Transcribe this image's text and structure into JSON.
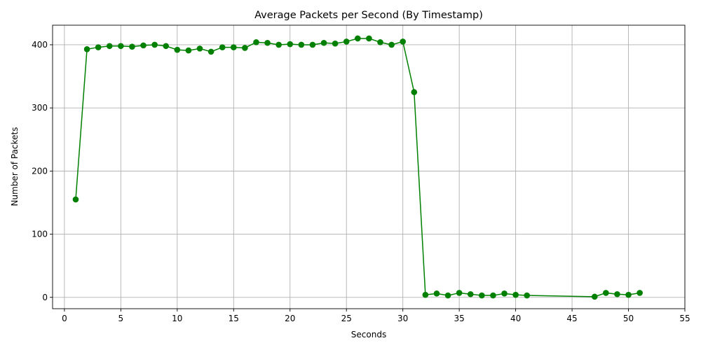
{
  "chart_data": {
    "type": "line",
    "title": "Average Packets per Second (By Timestamp)",
    "xlabel": "Seconds",
    "ylabel": "Number of Packets",
    "xlim": [
      -1.05,
      55
    ],
    "ylim": [
      -18,
      431
    ],
    "xticks": [
      0,
      5,
      10,
      15,
      20,
      25,
      30,
      35,
      40,
      45,
      50,
      55
    ],
    "yticks": [
      0,
      100,
      200,
      300,
      400
    ],
    "grid": true,
    "marker": "circle",
    "color": "#008000",
    "series": [
      {
        "x": [
          1,
          2,
          3,
          4,
          5,
          6,
          7,
          8,
          9,
          10,
          11,
          12,
          13,
          14,
          15,
          16,
          17,
          18,
          19,
          20,
          21,
          22,
          23,
          24,
          25,
          26,
          27,
          28,
          29,
          30,
          31,
          32,
          33,
          34,
          35,
          36,
          37,
          38,
          39,
          40,
          41,
          47,
          48,
          49,
          50,
          51
        ],
        "y": [
          155,
          393,
          396,
          398,
          398,
          397,
          399,
          400,
          398,
          392,
          391,
          394,
          389,
          396,
          396,
          395,
          404,
          403,
          400,
          401,
          400,
          400,
          403,
          402,
          405,
          410,
          410,
          404,
          400,
          405,
          325,
          4,
          6,
          3,
          7,
          5,
          3,
          3,
          6,
          4,
          3,
          1,
          7,
          5,
          4,
          7
        ]
      }
    ]
  }
}
